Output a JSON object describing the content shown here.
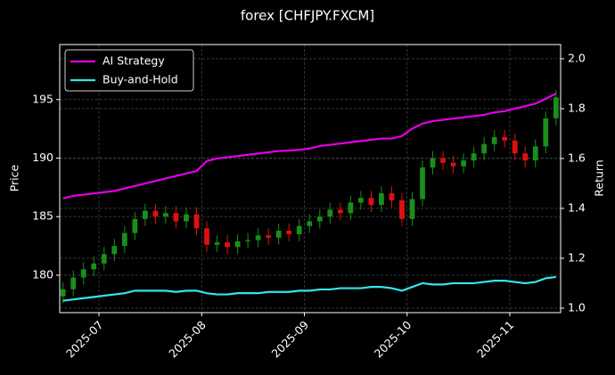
{
  "chart_data": {
    "type": "candlestick",
    "title": "forex [CHFJPY.FXCM]",
    "y_label": "Price",
    "y2_label": "Return",
    "x": [
      6.65,
      6.75,
      6.85,
      6.95,
      7.05,
      7.15,
      7.25,
      7.35,
      7.45,
      7.55,
      7.65,
      7.75,
      7.85,
      7.95,
      8.05,
      8.15,
      8.25,
      8.35,
      8.45,
      8.55,
      8.65,
      8.75,
      8.85,
      8.95,
      9.05,
      9.15,
      9.25,
      9.35,
      9.45,
      9.55,
      9.65,
      9.75,
      9.85,
      9.95,
      10.05,
      10.15,
      10.25,
      10.35,
      10.45,
      10.55,
      10.65,
      10.75,
      10.85,
      10.95,
      11.05,
      11.15,
      11.25,
      11.35,
      11.45
    ],
    "xlim": [
      6.618,
      11.495
    ],
    "xticks": [
      {
        "value": 7,
        "label": "2025-07"
      },
      {
        "value": 8,
        "label": "2025-08"
      },
      {
        "value": 9,
        "label": "2025-09"
      },
      {
        "value": 10,
        "label": "2025-10"
      },
      {
        "value": 11,
        "label": "2025-11"
      }
    ],
    "ylim": [
      176.8,
      199.7
    ],
    "yticks": [
      180,
      185,
      190,
      195
    ],
    "y2lim": [
      0.982,
      2.057
    ],
    "y2ticks": [
      {
        "value": 1,
        "label": "1.0"
      },
      1.2,
      1.4,
      1.6,
      1.8,
      {
        "value": 2,
        "label": "2.0"
      }
    ],
    "grid": true,
    "legend": "upper left",
    "up_color": "#1a8f1a",
    "down_color": "#e01010",
    "ohlc": {
      "open": [
        178.2,
        178.8,
        179.8,
        180.5,
        181.0,
        181.8,
        182.5,
        183.6,
        184.8,
        185.5,
        185.0,
        185.3,
        184.6,
        185.2,
        184.0,
        182.6,
        182.8,
        182.4,
        182.9,
        183.0,
        183.4,
        183.2,
        183.8,
        183.5,
        184.2,
        184.6,
        185.0,
        185.6,
        185.3,
        186.2,
        186.6,
        186.0,
        187.0,
        186.4,
        184.8,
        186.5,
        189.2,
        190.0,
        189.6,
        189.3,
        189.8,
        190.4,
        191.2,
        191.8,
        191.5,
        190.4,
        189.8,
        191.0,
        193.4
      ],
      "high": [
        179.4,
        180.4,
        181.1,
        181.6,
        182.4,
        183.1,
        184.2,
        185.4,
        186.1,
        186.1,
        185.9,
        185.9,
        185.8,
        185.8,
        184.6,
        183.4,
        183.4,
        183.5,
        183.6,
        184.0,
        184.0,
        184.4,
        184.4,
        184.8,
        185.2,
        185.6,
        186.2,
        186.2,
        186.8,
        187.2,
        187.2,
        187.6,
        187.6,
        187.0,
        187.1,
        189.8,
        190.6,
        190.6,
        190.2,
        190.4,
        191.0,
        191.8,
        192.4,
        192.4,
        192.1,
        191.0,
        191.6,
        194.0,
        195.8
      ],
      "low": [
        177.6,
        178.2,
        179.2,
        179.9,
        180.4,
        181.2,
        181.9,
        183.0,
        184.2,
        184.4,
        184.4,
        184.0,
        184.0,
        183.4,
        182.0,
        182.0,
        181.8,
        181.8,
        182.3,
        182.4,
        182.6,
        182.6,
        182.9,
        182.9,
        183.6,
        184.0,
        184.4,
        184.7,
        184.7,
        185.6,
        185.4,
        185.4,
        185.8,
        184.2,
        184.2,
        185.9,
        188.6,
        189.0,
        188.7,
        188.7,
        189.2,
        189.8,
        190.6,
        190.9,
        189.8,
        189.2,
        189.2,
        190.4,
        192.8
      ],
      "close": [
        178.8,
        179.8,
        180.5,
        181.0,
        181.8,
        182.5,
        183.6,
        184.8,
        185.5,
        185.0,
        185.3,
        184.6,
        185.2,
        184.0,
        182.6,
        182.8,
        182.4,
        182.9,
        183.0,
        183.4,
        183.2,
        183.8,
        183.5,
        184.2,
        184.6,
        185.0,
        185.6,
        185.3,
        186.2,
        186.6,
        186.0,
        187.0,
        186.4,
        184.8,
        186.5,
        189.2,
        190.0,
        189.6,
        189.3,
        189.8,
        190.4,
        191.2,
        191.8,
        191.5,
        190.4,
        189.8,
        191.0,
        193.4,
        195.2
      ]
    },
    "series": [
      {
        "name": "AI Strategy",
        "color": "#e600e6",
        "axis": "y2",
        "values": [
          1.44,
          1.45,
          1.455,
          1.46,
          1.465,
          1.47,
          1.48,
          1.49,
          1.5,
          1.51,
          1.52,
          1.53,
          1.54,
          1.55,
          1.59,
          1.6,
          1.605,
          1.61,
          1.615,
          1.62,
          1.625,
          1.63,
          1.632,
          1.635,
          1.64,
          1.65,
          1.655,
          1.66,
          1.665,
          1.67,
          1.675,
          1.68,
          1.68,
          1.69,
          1.72,
          1.74,
          1.75,
          1.755,
          1.76,
          1.765,
          1.77,
          1.775,
          1.785,
          1.79,
          1.8,
          1.81,
          1.82,
          1.84,
          1.86
        ]
      },
      {
        "name": "Buy-and-Hold",
        "color": "#33e6e6",
        "axis": "y2",
        "values": [
          1.03,
          1.035,
          1.04,
          1.045,
          1.05,
          1.055,
          1.06,
          1.07,
          1.07,
          1.07,
          1.07,
          1.065,
          1.07,
          1.07,
          1.06,
          1.055,
          1.055,
          1.06,
          1.06,
          1.06,
          1.065,
          1.065,
          1.065,
          1.07,
          1.07,
          1.075,
          1.075,
          1.08,
          1.08,
          1.08,
          1.085,
          1.085,
          1.08,
          1.07,
          1.085,
          1.1,
          1.095,
          1.095,
          1.1,
          1.1,
          1.1,
          1.105,
          1.11,
          1.11,
          1.105,
          1.1,
          1.105,
          1.12,
          1.125
        ]
      }
    ]
  }
}
